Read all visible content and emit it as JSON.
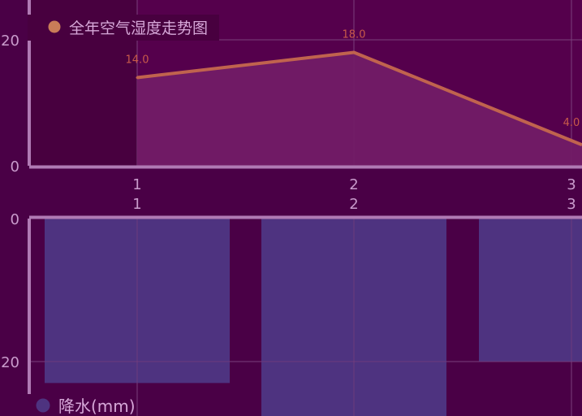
{
  "colors": {
    "background": "#4a0046",
    "top_panel": "#55004c",
    "top_shade": "#48003f",
    "axis": "#b07ab4",
    "grid": "#7a3f7c",
    "tick_text": "#c99bcc",
    "line_stroke": "#c0634e",
    "line_fill": "#721b66",
    "value_label": "#c85a4a",
    "bar_fill": "#4e3380",
    "legend_text": "#d6a8d8"
  },
  "chart_data": [
    {
      "type": "area",
      "legend": {
        "label": "全年空气湿度走势图",
        "marker_color": "#c97c58",
        "placement": "top-left"
      },
      "x": [
        "1",
        "2",
        "3"
      ],
      "values": [
        14.0,
        18.0,
        4.0
      ],
      "value_labels": [
        "14.0",
        "18.0",
        "4.0"
      ],
      "xaxis_labels": [
        "1",
        "2",
        "3"
      ],
      "yaxis_ticks": [
        {
          "value": 0,
          "label": "0"
        },
        {
          "value": 20,
          "label": "20"
        }
      ],
      "ylim": [
        0,
        20
      ],
      "grid": true
    },
    {
      "type": "bar",
      "legend": {
        "label": "降水(mm)",
        "marker_color": "#4e3380",
        "placement": "bottom-left"
      },
      "categories": [
        "1",
        "2",
        "3"
      ],
      "values": [
        23,
        28,
        20
      ],
      "xaxis_labels": [
        "1",
        "2",
        "3"
      ],
      "yaxis_ticks": [
        {
          "value": 0,
          "label": "0"
        },
        {
          "value": 20,
          "label": "20"
        }
      ],
      "inverted": true,
      "grid": true
    }
  ]
}
